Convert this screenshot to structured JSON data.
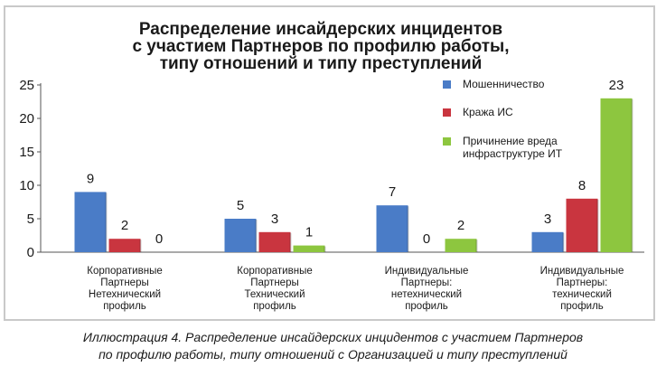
{
  "caption": {
    "line1": "Иллюстрация 4. Распределение инсайдерских инцидентов с участием Партнеров",
    "line2": "по профилю работы, типу отношений с Организацией и типу преступлений"
  },
  "chart_data": {
    "type": "bar",
    "title": [
      "Распределение инсайдерских инцидентов",
      "с участием Партнеров по профилю работы,",
      "типу отношений и типу преступлений"
    ],
    "categories": [
      [
        "Корпоративные",
        "Партнеры",
        "Нетехнический",
        "профиль"
      ],
      [
        "Корпоративные",
        "Партнеры",
        "Технический",
        "профиль"
      ],
      [
        "Индивидуальные",
        "Партнеры:",
        "нетехнический",
        "профиль"
      ],
      [
        "Индивидуальные",
        "Партнеры:",
        "технический",
        "профиль"
      ]
    ],
    "series": [
      {
        "name": "Мошенничество",
        "values": [
          9,
          5,
          7,
          3
        ],
        "color": "#4a7cc7"
      },
      {
        "name": "Кража ИС",
        "values": [
          2,
          3,
          0,
          8
        ],
        "color": "#c9353f"
      },
      {
        "name": [
          "Причинение вреда",
          "инфраструктуре ИТ"
        ],
        "values": [
          0,
          1,
          2,
          23
        ],
        "color": "#8dc63f"
      }
    ],
    "yticks": [
      0,
      5,
      10,
      15,
      20,
      25
    ],
    "ylim": [
      0,
      25
    ],
    "grid": false,
    "legend": "top-right",
    "xlabel": "",
    "ylabel": ""
  }
}
